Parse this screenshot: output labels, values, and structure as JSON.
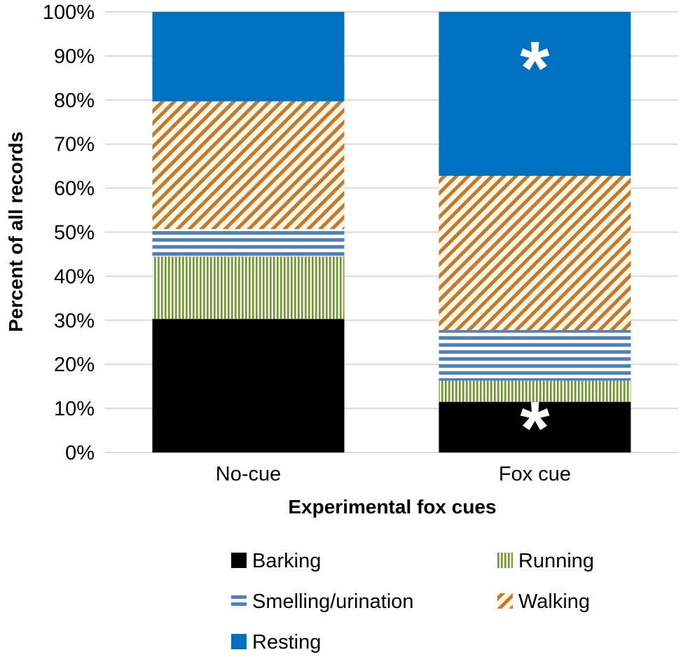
{
  "chart_data": {
    "type": "bar",
    "stacked": true,
    "percent_stacked": true,
    "title": "",
    "xlabel": "Experimental fox cues",
    "ylabel": "Percent of all records",
    "ylim": [
      0,
      100
    ],
    "y_ticks": [
      "0%",
      "10%",
      "20%",
      "30%",
      "40%",
      "50%",
      "60%",
      "70%",
      "80%",
      "90%",
      "100%"
    ],
    "grid": true,
    "legend_position": "bottom",
    "categories": [
      "No-cue",
      "Fox cue"
    ],
    "series": [
      {
        "name": "Barking",
        "values": [
          30.3,
          11.5
        ],
        "color": "#000000",
        "pattern": "solid"
      },
      {
        "name": "Running",
        "values": [
          14.2,
          4.8
        ],
        "color": "#76923c",
        "pattern": "vertical-lines"
      },
      {
        "name": "Smelling/urination",
        "values": [
          6.2,
          11.5
        ],
        "color": "#4f81bd",
        "pattern": "horizontal-lines"
      },
      {
        "name": "Walking",
        "values": [
          29.0,
          35.0
        ],
        "color": "#c0792e",
        "pattern": "diagonal-lines"
      },
      {
        "name": "Resting",
        "values": [
          20.3,
          37.2
        ],
        "color": "#0070c0",
        "pattern": "solid"
      }
    ],
    "annotations": [
      {
        "category": "Fox cue",
        "series": "Resting",
        "text": "*"
      },
      {
        "category": "Fox cue",
        "series": "Barking",
        "text": "*"
      }
    ]
  }
}
